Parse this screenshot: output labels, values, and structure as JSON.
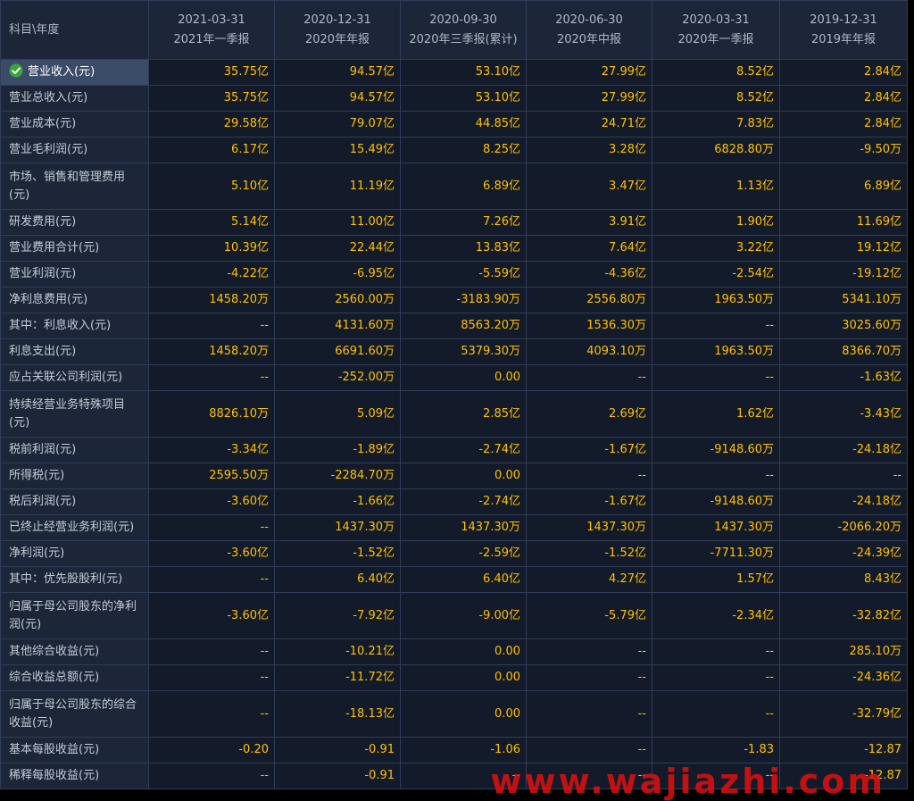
{
  "header": {
    "corner": "科目\\年度",
    "columns": [
      {
        "date": "2021-03-31",
        "period": "2021年一季报"
      },
      {
        "date": "2020-12-31",
        "period": "2020年年报"
      },
      {
        "date": "2020-09-30",
        "period": "2020年三季报(累计)"
      },
      {
        "date": "2020-06-30",
        "period": "2020年中报"
      },
      {
        "date": "2020-03-31",
        "period": "2020年一季报"
      },
      {
        "date": "2019-12-31",
        "period": "2019年年报"
      }
    ]
  },
  "selected_row_icon": "check-circle-icon",
  "rows": [
    {
      "label": "营业收入(元)",
      "values": [
        "35.75亿",
        "94.57亿",
        "53.10亿",
        "27.99亿",
        "8.52亿",
        "2.84亿"
      ]
    },
    {
      "label": "营业总收入(元)",
      "values": [
        "35.75亿",
        "94.57亿",
        "53.10亿",
        "27.99亿",
        "8.52亿",
        "2.84亿"
      ]
    },
    {
      "label": "营业成本(元)",
      "values": [
        "29.58亿",
        "79.07亿",
        "44.85亿",
        "24.71亿",
        "7.83亿",
        "2.84亿"
      ]
    },
    {
      "label": "营业毛利润(元)",
      "values": [
        "6.17亿",
        "15.49亿",
        "8.25亿",
        "3.28亿",
        "6828.80万",
        "-9.50万"
      ]
    },
    {
      "label": "市场、销售和管理费用(元)",
      "values": [
        "5.10亿",
        "11.19亿",
        "6.89亿",
        "3.47亿",
        "1.13亿",
        "6.89亿"
      ]
    },
    {
      "label": "研发费用(元)",
      "values": [
        "5.14亿",
        "11.00亿",
        "7.26亿",
        "3.91亿",
        "1.90亿",
        "11.69亿"
      ]
    },
    {
      "label": "营业费用合计(元)",
      "values": [
        "10.39亿",
        "22.44亿",
        "13.83亿",
        "7.64亿",
        "3.22亿",
        "19.12亿"
      ]
    },
    {
      "label": "营业利润(元)",
      "values": [
        "-4.22亿",
        "-6.95亿",
        "-5.59亿",
        "-4.36亿",
        "-2.54亿",
        "-19.12亿"
      ]
    },
    {
      "label": "净利息费用(元)",
      "values": [
        "1458.20万",
        "2560.00万",
        "-3183.90万",
        "2556.80万",
        "1963.50万",
        "5341.10万"
      ]
    },
    {
      "label": "其中：利息收入(元)",
      "values": [
        "--",
        "4131.60万",
        "8563.20万",
        "1536.30万",
        "--",
        "3025.60万"
      ]
    },
    {
      "label": "利息支出(元)",
      "values": [
        "1458.20万",
        "6691.60万",
        "5379.30万",
        "4093.10万",
        "1963.50万",
        "8366.70万"
      ]
    },
    {
      "label": "应占关联公司利润(元)",
      "values": [
        "--",
        "-252.00万",
        "0.00",
        "--",
        "--",
        "-1.63亿"
      ]
    },
    {
      "label": "持续经营业务特殊项目(元)",
      "values": [
        "8826.10万",
        "5.09亿",
        "2.85亿",
        "2.69亿",
        "1.62亿",
        "-3.43亿"
      ]
    },
    {
      "label": "税前利润(元)",
      "values": [
        "-3.34亿",
        "-1.89亿",
        "-2.74亿",
        "-1.67亿",
        "-9148.60万",
        "-24.18亿"
      ]
    },
    {
      "label": "所得税(元)",
      "values": [
        "2595.50万",
        "-2284.70万",
        "0.00",
        "--",
        "--",
        "--"
      ]
    },
    {
      "label": "税后利润(元)",
      "values": [
        "-3.60亿",
        "-1.66亿",
        "-2.74亿",
        "-1.67亿",
        "-9148.60万",
        "-24.18亿"
      ]
    },
    {
      "label": "已终止经营业务利润(元)",
      "values": [
        "--",
        "1437.30万",
        "1437.30万",
        "1437.30万",
        "1437.30万",
        "-2066.20万"
      ]
    },
    {
      "label": "净利润(元)",
      "values": [
        "-3.60亿",
        "-1.52亿",
        "-2.59亿",
        "-1.52亿",
        "-7711.30万",
        "-24.39亿"
      ]
    },
    {
      "label": "其中：优先股股利(元)",
      "values": [
        "--",
        "6.40亿",
        "6.40亿",
        "4.27亿",
        "1.57亿",
        "8.43亿"
      ]
    },
    {
      "label": "归属于母公司股东的净利润(元)",
      "values": [
        "-3.60亿",
        "-7.92亿",
        "-9.00亿",
        "-5.79亿",
        "-2.34亿",
        "-32.82亿"
      ]
    },
    {
      "label": "其他综合收益(元)",
      "values": [
        "--",
        "-10.21亿",
        "0.00",
        "--",
        "--",
        "285.10万"
      ]
    },
    {
      "label": "综合收益总额(元)",
      "values": [
        "--",
        "-11.72亿",
        "0.00",
        "--",
        "--",
        "-24.36亿"
      ]
    },
    {
      "label": "归属于母公司股东的综合收益(元)",
      "values": [
        "--",
        "-18.13亿",
        "0.00",
        "--",
        "--",
        "-32.79亿"
      ]
    },
    {
      "label": "基本每股收益(元)",
      "values": [
        "-0.20",
        "-0.91",
        "-1.06",
        "--",
        "-1.83",
        "-12.87"
      ]
    },
    {
      "label": "稀释每股收益(元)",
      "values": [
        "--",
        "-0.91",
        "--",
        "--",
        "--",
        "-12.87"
      ]
    }
  ],
  "watermark": "www.wajiazhi.com"
}
